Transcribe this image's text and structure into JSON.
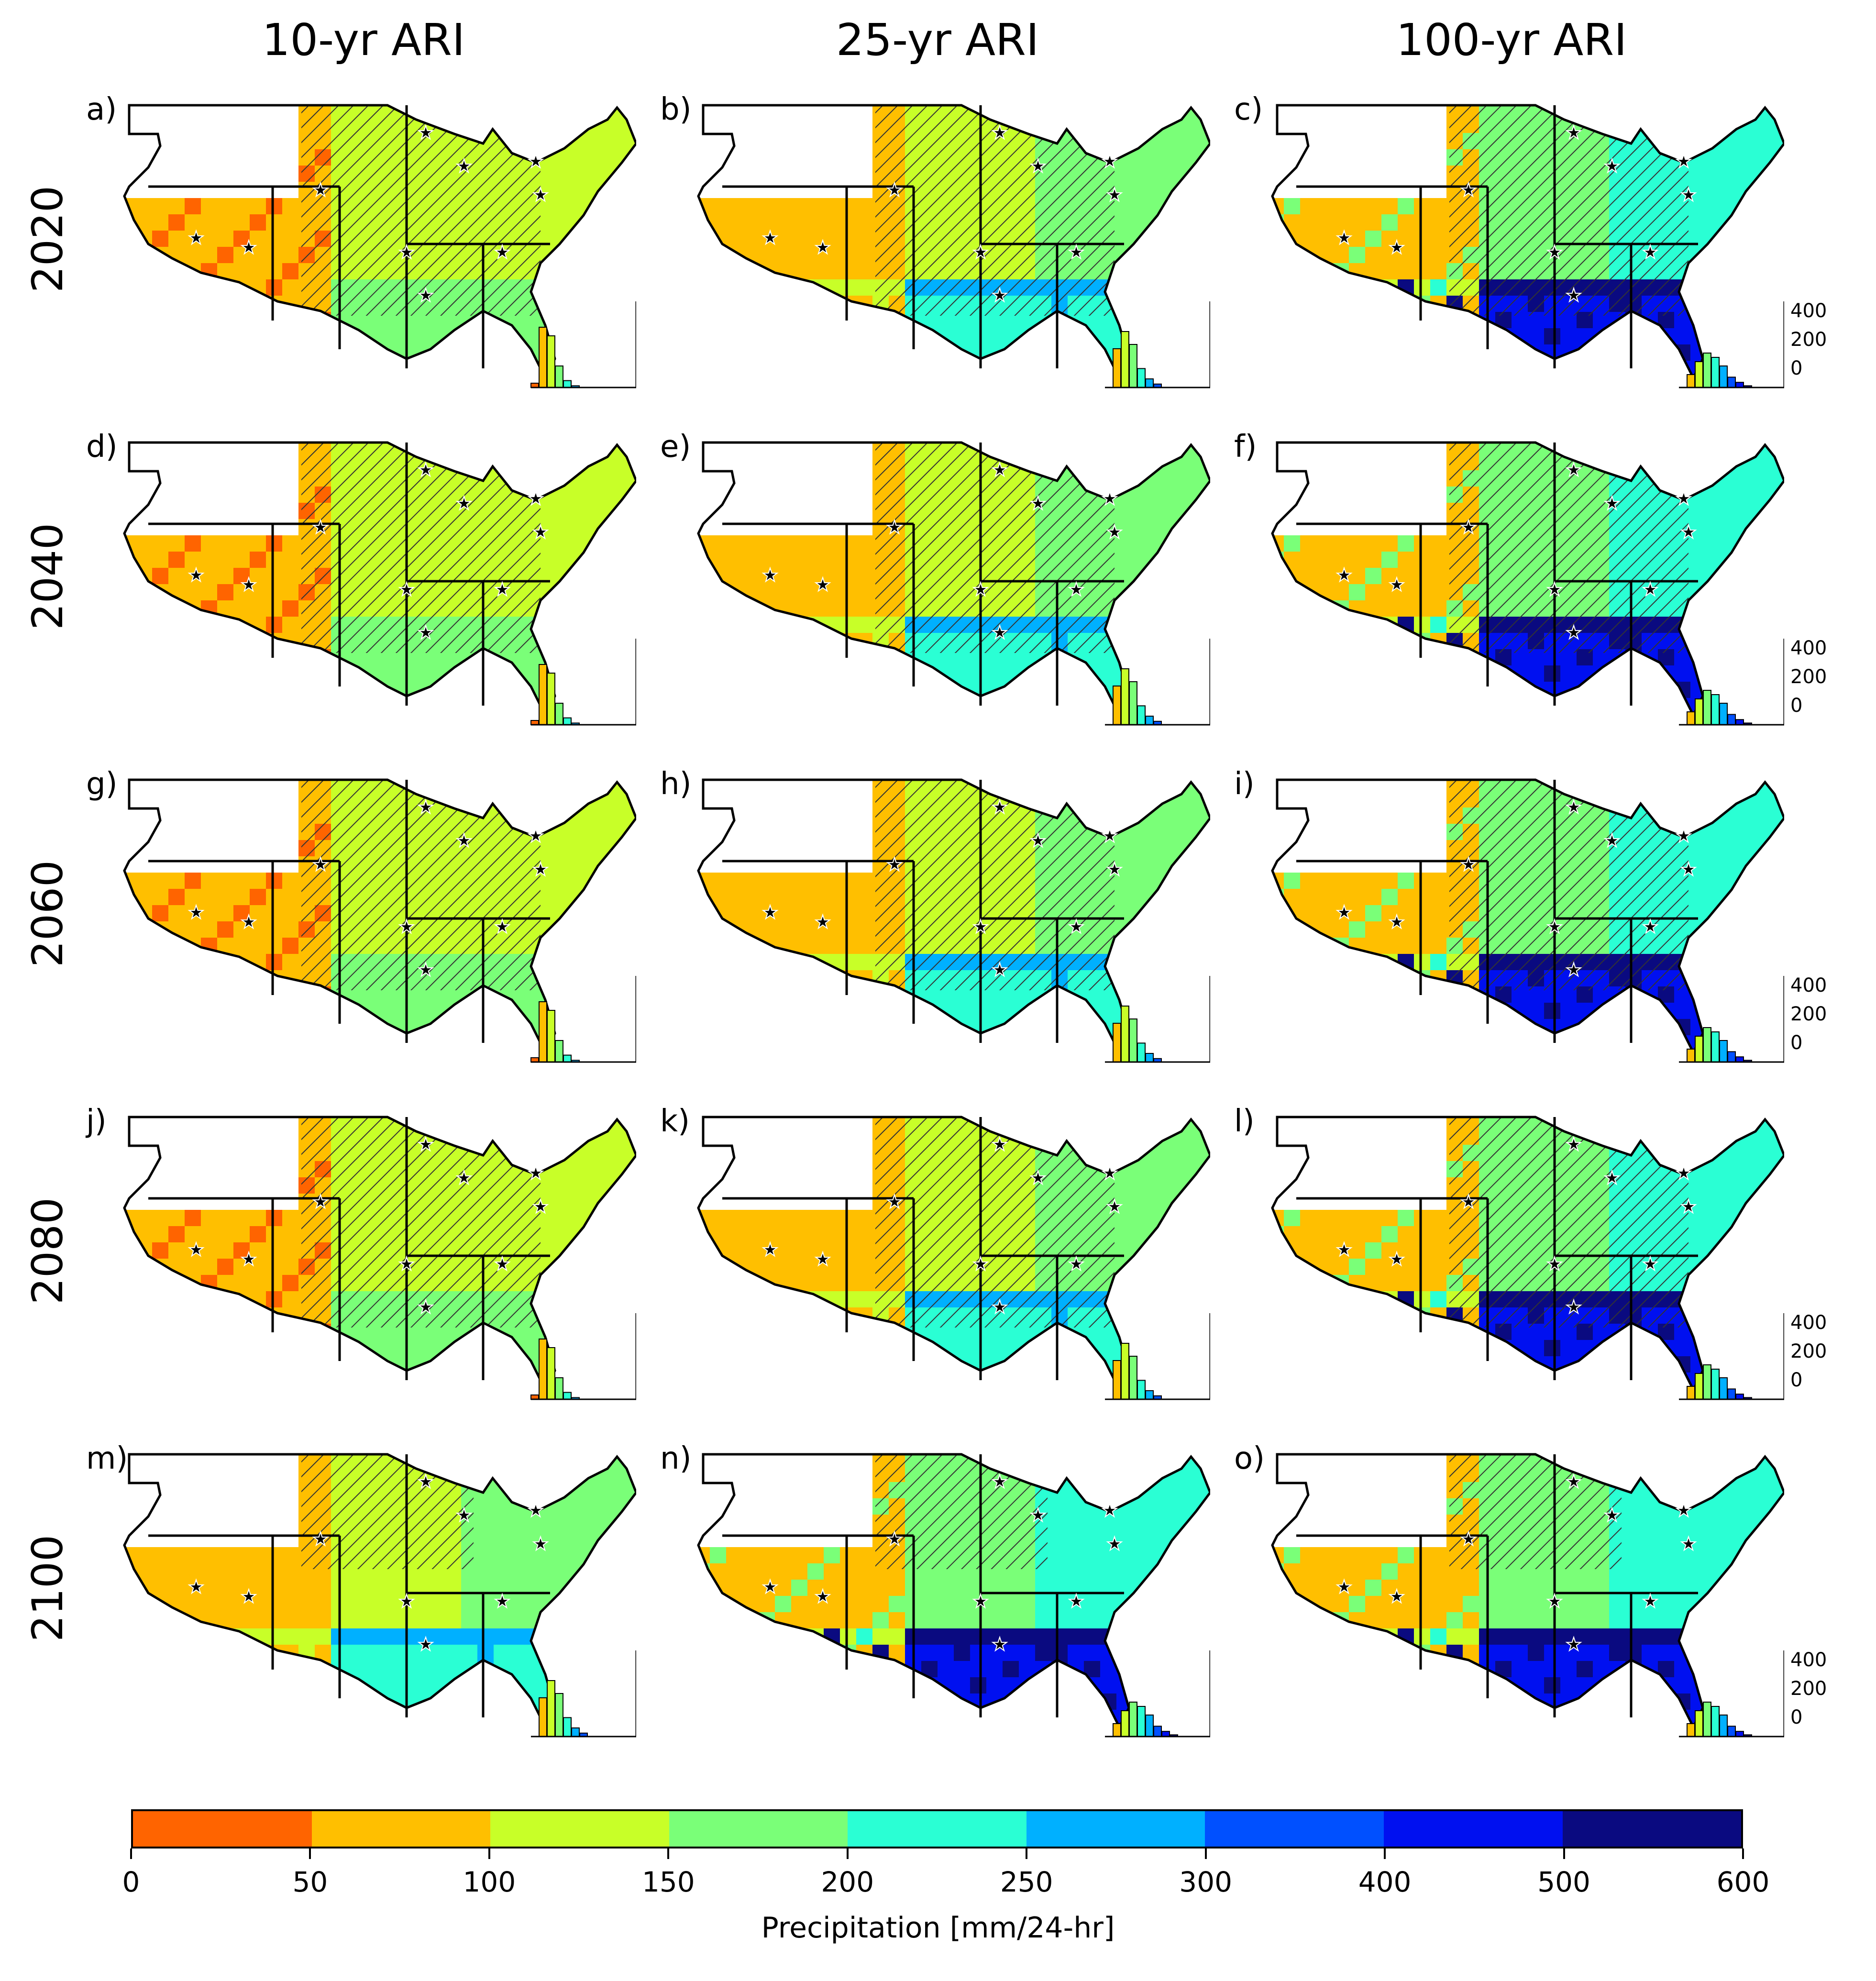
{
  "column_titles": [
    "10-yr ARI",
    "25-yr ARI",
    "100-yr ARI"
  ],
  "row_labels": [
    "2020",
    "2040",
    "2060",
    "2080",
    "2100"
  ],
  "panel_labels": [
    "a)",
    "b)",
    "c)",
    "d)",
    "e)",
    "f)",
    "g)",
    "h)",
    "i)",
    "j)",
    "k)",
    "l)",
    "m)",
    "n)",
    "o)"
  ],
  "histogram_tick_labels": [
    "400",
    "200",
    "0"
  ],
  "colorbar": {
    "title": "Precipitation [mm/24-hr]",
    "tick_labels": [
      "0",
      "50",
      "100",
      "150",
      "200",
      "250",
      "300",
      "400",
      "500",
      "600"
    ],
    "bin_colors": [
      "#ff6400",
      "#ffbf00",
      "#c8ff28",
      "#7aff78",
      "#2affd4",
      "#00b0ff",
      "#0050ff",
      "#0010f0",
      "#0a0a80"
    ]
  },
  "panel_dominant_levels": [
    [
      "low",
      "mid",
      "high"
    ],
    [
      "low",
      "mid",
      "high"
    ],
    [
      "low",
      "mid",
      "high"
    ],
    [
      "low",
      "mid",
      "high"
    ],
    [
      "mid",
      "high",
      "high"
    ]
  ]
}
